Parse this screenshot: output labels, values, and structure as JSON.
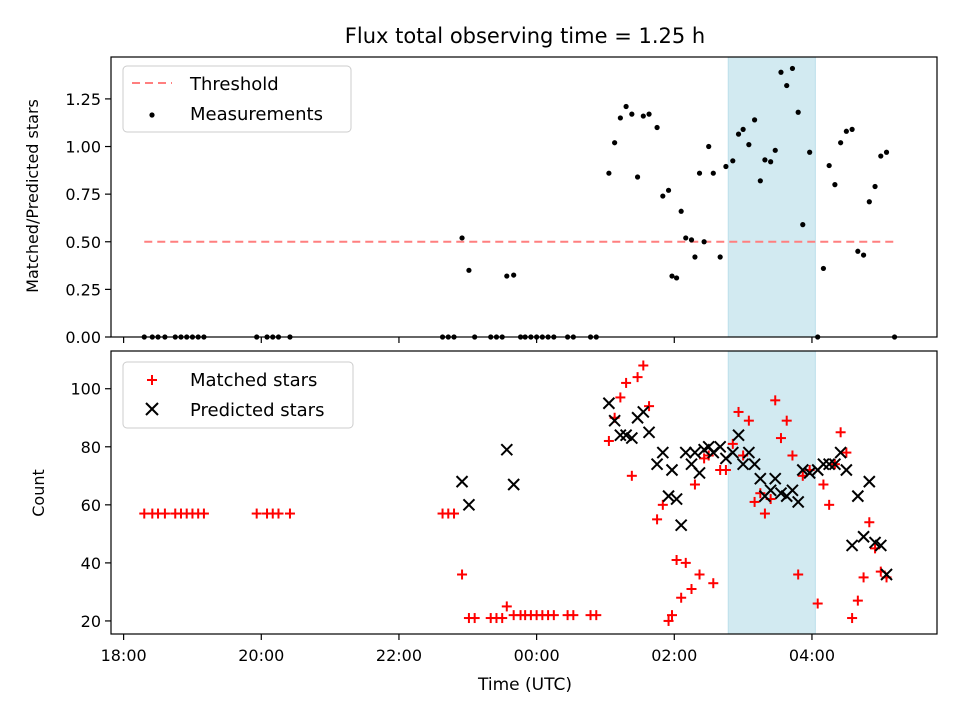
{
  "title": "Flux total observing time = 1.25 h",
  "colors": {
    "threshold": "#ff7f7f",
    "measurements": "#000000",
    "matched": "#ff0000",
    "predicted": "#000000",
    "span": "#add8e6"
  },
  "chart_data": [
    {
      "type": "scatter",
      "id": "top",
      "ylabel": "Matched/Predicted stars",
      "xlabel": "",
      "ylim": [
        0.0,
        1.47
      ],
      "yticks": [
        0.0,
        0.25,
        0.5,
        0.75,
        1.0,
        1.25
      ],
      "ytick_labels": [
        "0.00",
        "0.25",
        "0.50",
        "0.75",
        "1.00",
        "1.25"
      ],
      "xlim": [
        "17:49",
        "05:49"
      ],
      "shaded_span": [
        "02:47",
        "04:03"
      ],
      "legend": {
        "position": "top-left",
        "entries": [
          "Threshold",
          "Measurements"
        ]
      },
      "threshold": {
        "name": "Threshold",
        "y": 0.5,
        "x": [
          "18:18",
          "05:12"
        ],
        "style": "dashed"
      },
      "series": [
        {
          "name": "Measurements",
          "marker": "dot",
          "points": [
            [
              "18:18",
              0
            ],
            [
              "18:25",
              0
            ],
            [
              "18:30",
              0
            ],
            [
              "18:36",
              0
            ],
            [
              "18:45",
              0
            ],
            [
              "18:50",
              0
            ],
            [
              "18:55",
              0
            ],
            [
              "19:00",
              0
            ],
            [
              "19:05",
              0
            ],
            [
              "19:10",
              0
            ],
            [
              "19:56",
              0
            ],
            [
              "20:05",
              0
            ],
            [
              "20:10",
              0
            ],
            [
              "20:15",
              0
            ],
            [
              "20:25",
              0
            ],
            [
              "22:38",
              0
            ],
            [
              "22:43",
              0
            ],
            [
              "22:48",
              0
            ],
            [
              "22:55",
              0.52
            ],
            [
              "23:01",
              0.35
            ],
            [
              "23:06",
              0
            ],
            [
              "23:20",
              0
            ],
            [
              "23:25",
              0
            ],
            [
              "23:30",
              0
            ],
            [
              "23:34",
              0.32
            ],
            [
              "23:40",
              0.325
            ],
            [
              "23:46",
              0
            ],
            [
              "23:50",
              0
            ],
            [
              "23:55",
              0
            ],
            [
              "00:00",
              0
            ],
            [
              "00:05",
              0
            ],
            [
              "00:10",
              0
            ],
            [
              "00:15",
              0
            ],
            [
              "00:27",
              0
            ],
            [
              "00:32",
              0
            ],
            [
              "00:47",
              0
            ],
            [
              "00:52",
              0
            ],
            [
              "01:03",
              0.86
            ],
            [
              "01:08",
              1.02
            ],
            [
              "01:13",
              1.15
            ],
            [
              "01:18",
              1.21
            ],
            [
              "01:23",
              1.17
            ],
            [
              "01:28",
              0.84
            ],
            [
              "01:33",
              1.16
            ],
            [
              "01:38",
              1.17
            ],
            [
              "01:45",
              1.1
            ],
            [
              "01:50",
              0.74
            ],
            [
              "01:55",
              0.77
            ],
            [
              "01:58",
              0.32
            ],
            [
              "02:02",
              0.31
            ],
            [
              "02:06",
              0.66
            ],
            [
              "02:10",
              0.52
            ],
            [
              "02:15",
              0.51
            ],
            [
              "02:18",
              0.42
            ],
            [
              "02:22",
              0.86
            ],
            [
              "02:26",
              0.5
            ],
            [
              "02:30",
              1.0
            ],
            [
              "02:34",
              0.86
            ],
            [
              "02:40",
              0.42
            ],
            [
              "02:45",
              0.895
            ],
            [
              "02:51",
              0.925
            ],
            [
              "02:56",
              1.065
            ],
            [
              "03:00",
              1.09
            ],
            [
              "03:05",
              1.01
            ],
            [
              "03:10",
              1.14
            ],
            [
              "03:15",
              0.82
            ],
            [
              "03:19",
              0.93
            ],
            [
              "03:24",
              0.92
            ],
            [
              "03:28",
              0.98
            ],
            [
              "03:33",
              1.39
            ],
            [
              "03:38",
              1.32
            ],
            [
              "03:43",
              1.41
            ],
            [
              "03:48",
              1.18
            ],
            [
              "03:52",
              0.59
            ],
            [
              "03:58",
              0.97
            ],
            [
              "04:05",
              0.0
            ],
            [
              "04:10",
              0.36
            ],
            [
              "04:15",
              0.9
            ],
            [
              "04:20",
              0.8
            ],
            [
              "04:25",
              1.02
            ],
            [
              "04:30",
              1.08
            ],
            [
              "04:35",
              1.09
            ],
            [
              "04:40",
              0.45
            ],
            [
              "04:45",
              0.43
            ],
            [
              "04:50",
              0.71
            ],
            [
              "04:55",
              0.79
            ],
            [
              "05:00",
              0.95
            ],
            [
              "05:05",
              0.97
            ],
            [
              "05:12",
              0.0
            ]
          ]
        }
      ]
    },
    {
      "type": "scatter",
      "id": "bottom",
      "ylabel": "Count",
      "xlabel": "Time (UTC)",
      "ylim": [
        15.5,
        113
      ],
      "yticks": [
        20,
        40,
        60,
        80,
        100
      ],
      "ytick_labels": [
        "20",
        "40",
        "60",
        "80",
        "100"
      ],
      "xlim": [
        "17:49",
        "05:49"
      ],
      "xticks": [
        "18:00",
        "20:00",
        "22:00",
        "00:00",
        "02:00",
        "04:00"
      ],
      "xtick_labels": [
        "18:00",
        "20:00",
        "22:00",
        "00:00",
        "02:00",
        "04:00"
      ],
      "shaded_span": [
        "02:47",
        "04:03"
      ],
      "legend": {
        "position": "top-left",
        "entries": [
          "Matched stars",
          "Predicted stars"
        ]
      },
      "series": [
        {
          "name": "Matched stars",
          "marker": "plus",
          "points": [
            [
              "18:18",
              57
            ],
            [
              "18:25",
              57
            ],
            [
              "18:30",
              57
            ],
            [
              "18:36",
              57
            ],
            [
              "18:45",
              57
            ],
            [
              "18:50",
              57
            ],
            [
              "18:55",
              57
            ],
            [
              "19:00",
              57
            ],
            [
              "19:05",
              57
            ],
            [
              "19:10",
              57
            ],
            [
              "19:56",
              57
            ],
            [
              "20:05",
              57
            ],
            [
              "20:10",
              57
            ],
            [
              "20:15",
              57
            ],
            [
              "20:25",
              57
            ],
            [
              "22:38",
              57
            ],
            [
              "22:43",
              57
            ],
            [
              "22:48",
              57
            ],
            [
              "22:55",
              36
            ],
            [
              "23:01",
              21
            ],
            [
              "23:06",
              21
            ],
            [
              "23:20",
              21
            ],
            [
              "23:25",
              21
            ],
            [
              "23:30",
              21
            ],
            [
              "23:34",
              25
            ],
            [
              "23:40",
              22
            ],
            [
              "23:46",
              22
            ],
            [
              "23:50",
              22
            ],
            [
              "23:55",
              22
            ],
            [
              "00:00",
              22
            ],
            [
              "00:05",
              22
            ],
            [
              "00:10",
              22
            ],
            [
              "00:15",
              22
            ],
            [
              "00:27",
              22
            ],
            [
              "00:32",
              22
            ],
            [
              "00:47",
              22
            ],
            [
              "00:52",
              22
            ],
            [
              "01:03",
              82
            ],
            [
              "01:08",
              90
            ],
            [
              "01:13",
              97
            ],
            [
              "01:18",
              102
            ],
            [
              "01:23",
              70
            ],
            [
              "01:28",
              104
            ],
            [
              "01:33",
              108
            ],
            [
              "01:38",
              94
            ],
            [
              "01:45",
              55
            ],
            [
              "01:50",
              60
            ],
            [
              "01:55",
              20
            ],
            [
              "01:58",
              22
            ],
            [
              "02:02",
              41
            ],
            [
              "02:06",
              28
            ],
            [
              "02:10",
              40
            ],
            [
              "02:15",
              31
            ],
            [
              "02:18",
              67
            ],
            [
              "02:22",
              36
            ],
            [
              "02:26",
              76
            ],
            [
              "02:30",
              77
            ],
            [
              "02:34",
              33
            ],
            [
              "02:40",
              72
            ],
            [
              "02:45",
              72
            ],
            [
              "02:51",
              81
            ],
            [
              "02:56",
              92
            ],
            [
              "03:00",
              77
            ],
            [
              "03:05",
              89
            ],
            [
              "03:10",
              61
            ],
            [
              "03:15",
              64
            ],
            [
              "03:19",
              57
            ],
            [
              "03:24",
              62
            ],
            [
              "03:28",
              96
            ],
            [
              "03:33",
              83
            ],
            [
              "03:38",
              89
            ],
            [
              "03:43",
              77
            ],
            [
              "03:48",
              36
            ],
            [
              "03:52",
              70
            ],
            [
              "03:58",
              72
            ],
            [
              "04:05",
              26
            ],
            [
              "04:10",
              67
            ],
            [
              "04:15",
              60
            ],
            [
              "04:20",
              74
            ],
            [
              "04:25",
              85
            ],
            [
              "04:30",
              78
            ],
            [
              "04:35",
              21
            ],
            [
              "04:40",
              27
            ],
            [
              "04:45",
              35
            ],
            [
              "04:50",
              54
            ],
            [
              "04:55",
              45
            ],
            [
              "05:00",
              37
            ],
            [
              "05:05",
              35
            ]
          ]
        },
        {
          "name": "Predicted stars",
          "marker": "x",
          "points": [
            [
              "22:55",
              68
            ],
            [
              "23:01",
              60
            ],
            [
              "23:34",
              79
            ],
            [
              "23:40",
              67
            ],
            [
              "01:03",
              95
            ],
            [
              "01:08",
              89
            ],
            [
              "01:13",
              84
            ],
            [
              "01:18",
              84
            ],
            [
              "01:23",
              83
            ],
            [
              "01:28",
              90
            ],
            [
              "01:33",
              92
            ],
            [
              "01:38",
              85
            ],
            [
              "01:45",
              74
            ],
            [
              "01:50",
              78
            ],
            [
              "01:55",
              63
            ],
            [
              "01:58",
              72
            ],
            [
              "02:02",
              62
            ],
            [
              "02:06",
              53
            ],
            [
              "02:10",
              78
            ],
            [
              "02:15",
              74
            ],
            [
              "02:18",
              78
            ],
            [
              "02:22",
              71
            ],
            [
              "02:26",
              79
            ],
            [
              "02:30",
              80
            ],
            [
              "02:34",
              78
            ],
            [
              "02:40",
              80
            ],
            [
              "02:45",
              76
            ],
            [
              "02:51",
              78
            ],
            [
              "02:56",
              84
            ],
            [
              "03:00",
              74
            ],
            [
              "03:05",
              78
            ],
            [
              "03:10",
              74
            ],
            [
              "03:15",
              69
            ],
            [
              "03:19",
              63
            ],
            [
              "03:24",
              65
            ],
            [
              "03:28",
              69
            ],
            [
              "03:33",
              64
            ],
            [
              "03:38",
              63
            ],
            [
              "03:43",
              65
            ],
            [
              "03:48",
              61
            ],
            [
              "03:52",
              72
            ],
            [
              "03:58",
              71
            ],
            [
              "04:05",
              72
            ],
            [
              "04:10",
              74
            ],
            [
              "04:15",
              74
            ],
            [
              "04:20",
              74
            ],
            [
              "04:25",
              78
            ],
            [
              "04:30",
              72
            ],
            [
              "04:35",
              46
            ],
            [
              "04:40",
              63
            ],
            [
              "04:45",
              49
            ],
            [
              "04:50",
              68
            ],
            [
              "04:55",
              47
            ],
            [
              "05:00",
              46
            ],
            [
              "05:05",
              36
            ]
          ]
        }
      ]
    }
  ]
}
